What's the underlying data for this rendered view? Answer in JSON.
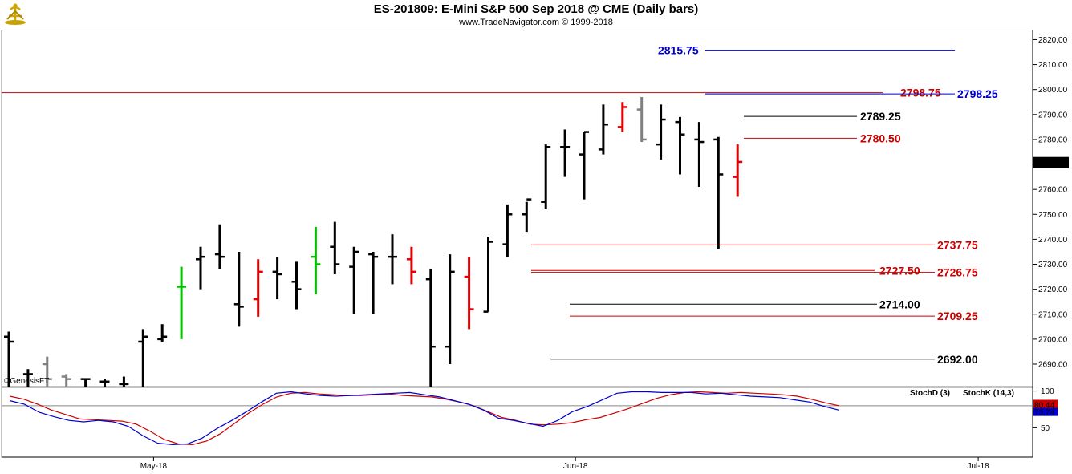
{
  "header": {
    "title": "ES-201809:  E-Mini S&P 500 Sep 2018 @ CME  (Daily bars)",
    "subtitle": "www.TradeNavigator.com © 1999-2018"
  },
  "chart_data": {
    "type": "ohlc",
    "price_axis": {
      "ylim": [
        2681,
        2824
      ],
      "ticks": [
        2690,
        2700,
        2710,
        2720,
        2730,
        2740,
        2750,
        2760,
        2770,
        2780,
        2790,
        2800,
        2810,
        2820
      ],
      "tick_labels": [
        "2690.00",
        "2700.00",
        "2710.00",
        "2720.00",
        "2730.00",
        "2740.00",
        "2750.00",
        "2760.00",
        "2770.00",
        "2780.00",
        "2790.00",
        "2800.00",
        "2810.00",
        "2820.00"
      ]
    },
    "x_axis": {
      "labels": [
        "May-18",
        "Jun-18",
        "Jul-18"
      ],
      "label_index": [
        6,
        28,
        49
      ]
    },
    "current_price_label": "2770.75",
    "current_price": 2770.75,
    "watermark": "©GenesisFT",
    "bars": [
      {
        "o": 2701,
        "h": 2703,
        "l": 2681,
        "c": 2699,
        "color": "#000000"
      },
      {
        "o": 2686,
        "h": 2688,
        "l": 2681,
        "c": 2686,
        "color": "#000000"
      },
      {
        "o": 2690,
        "h": 2693,
        "l": 2681,
        "c": 2684,
        "color": "#808080"
      },
      {
        "o": 2685,
        "h": 2686,
        "l": 2681,
        "c": 2684,
        "color": "#808080"
      },
      {
        "o": 2684,
        "h": 2684,
        "l": 2681,
        "c": 2684,
        "color": "#000000"
      },
      {
        "o": 2683,
        "h": 2684,
        "l": 2681,
        "c": 2683,
        "color": "#000000"
      },
      {
        "o": 2682,
        "h": 2685,
        "l": 2681,
        "c": 2682,
        "color": "#000000"
      },
      {
        "o": 2699,
        "h": 2704,
        "l": 2681,
        "c": 2701,
        "color": "#000000"
      },
      {
        "o": 2700,
        "h": 2706,
        "l": 2699,
        "c": 2701,
        "color": "#000000"
      },
      {
        "o": 2721,
        "h": 2729,
        "l": 2700,
        "c": 2721,
        "color": "#00c000"
      },
      {
        "o": 2732,
        "h": 2737,
        "l": 2720,
        "c": 2733,
        "color": "#000000"
      },
      {
        "o": 2734,
        "h": 2746,
        "l": 2728,
        "c": 2733,
        "color": "#000000"
      },
      {
        "o": 2714,
        "h": 2735,
        "l": 2705,
        "c": 2713,
        "color": "#000000"
      },
      {
        "o": 2716,
        "h": 2732,
        "l": 2709,
        "c": 2727,
        "color": "#e00000"
      },
      {
        "o": 2727,
        "h": 2733,
        "l": 2716,
        "c": 2726,
        "color": "#000000"
      },
      {
        "o": 2723,
        "h": 2731,
        "l": 2712,
        "c": 2720,
        "color": "#000000"
      },
      {
        "o": 2733,
        "h": 2745,
        "l": 2718,
        "c": 2730,
        "color": "#00c000"
      },
      {
        "o": 2737,
        "h": 2747,
        "l": 2726,
        "c": 2730,
        "color": "#000000"
      },
      {
        "o": 2729,
        "h": 2737,
        "l": 2710,
        "c": 2735,
        "color": "#000000"
      },
      {
        "o": 2734,
        "h": 2735,
        "l": 2710,
        "c": 2733,
        "color": "#000000"
      },
      {
        "o": 2733,
        "h": 2742,
        "l": 2722,
        "c": 2733,
        "color": "#000000"
      },
      {
        "o": 2732,
        "h": 2737,
        "l": 2722,
        "c": 2727,
        "color": "#e00000"
      },
      {
        "o": 2724,
        "h": 2728,
        "l": 2681,
        "c": 2697,
        "color": "#000000"
      },
      {
        "o": 2697,
        "h": 2734,
        "l": 2690,
        "c": 2727,
        "color": "#000000"
      },
      {
        "o": 2725,
        "h": 2733,
        "l": 2704,
        "c": 2712,
        "color": "#e00000"
      },
      {
        "o": 2711,
        "h": 2741,
        "l": 2711,
        "c": 2739,
        "color": "#000000"
      },
      {
        "o": 2738,
        "h": 2754,
        "l": 2733,
        "c": 2750,
        "color": "#000000"
      },
      {
        "o": 2750,
        "h": 2755,
        "l": 2743,
        "c": 2756,
        "color": "#000000"
      },
      {
        "o": 2755,
        "h": 2778,
        "l": 2752,
        "c": 2777,
        "color": "#000000"
      },
      {
        "o": 2777,
        "h": 2784,
        "l": 2765,
        "c": 2777,
        "color": "#000000"
      },
      {
        "o": 2774,
        "h": 2783,
        "l": 2756,
        "c": 2783,
        "color": "#000000"
      },
      {
        "o": 2776,
        "h": 2794,
        "l": 2774,
        "c": 2786,
        "color": "#000000"
      },
      {
        "o": 2785,
        "h": 2795,
        "l": 2783,
        "c": 2793,
        "color": "#e00000"
      },
      {
        "o": 2792,
        "h": 2797,
        "l": 2779,
        "c": 2780,
        "color": "#808080"
      },
      {
        "o": 2778,
        "h": 2794,
        "l": 2772,
        "c": 2788,
        "color": "#000000"
      },
      {
        "o": 2787,
        "h": 2789,
        "l": 2766,
        "c": 2782,
        "color": "#000000"
      },
      {
        "o": 2780,
        "h": 2787,
        "l": 2761,
        "c": 2779,
        "color": "#000000"
      },
      {
        "o": 2780,
        "h": 2781,
        "l": 2736,
        "c": 2766,
        "color": "#000000"
      },
      {
        "o": 2765,
        "h": 2778,
        "l": 2757,
        "c": 2771,
        "color": "#e00000"
      }
    ],
    "levels": [
      {
        "value": 2815.75,
        "label": "2815.75",
        "color": "#0000cc",
        "label_pos": "left"
      },
      {
        "value": 2798.75,
        "label": "2798.75",
        "color": "#cc0000",
        "label_pos": "right"
      },
      {
        "value": 2798.25,
        "label": "2798.25",
        "color": "#0000cc",
        "label_pos": "far-right"
      },
      {
        "value": 2789.25,
        "label": "2789.25",
        "color": "#000000",
        "label_pos": "right"
      },
      {
        "value": 2780.5,
        "label": "2780.50",
        "color": "#cc0000",
        "label_pos": "right"
      },
      {
        "value": 2737.75,
        "label": "2737.75",
        "color": "#cc0000",
        "label_pos": "right"
      },
      {
        "value": 2727.5,
        "label": "2727.50",
        "color": "#cc0000",
        "label_pos": "right"
      },
      {
        "value": 2726.75,
        "label": "2726.75",
        "color": "#cc0000",
        "label_pos": "right"
      },
      {
        "value": 2714.0,
        "label": "2714.00",
        "color": "#000000",
        "label_pos": "right"
      },
      {
        "value": 2709.25,
        "label": "2709.25",
        "color": "#cc0000",
        "label_pos": "right"
      },
      {
        "value": 2692.0,
        "label": "2692.00",
        "color": "#000000",
        "label_pos": "right"
      }
    ],
    "stochastic": {
      "ylim": [
        10,
        105
      ],
      "ticks": [
        50,
        100
      ],
      "tick_labels": [
        "50",
        "100"
      ],
      "reference_level": 80,
      "labels": {
        "d": "StochD (3)",
        "k": "StochK (14,3)"
      },
      "d_value_label": "80.44",
      "k_value_label": "73.74",
      "d_color": "#cc0000",
      "k_color": "#0000cc",
      "d": [
        93,
        89,
        82,
        74,
        68,
        62,
        61,
        60,
        59,
        55,
        45,
        34,
        28,
        27,
        32,
        42,
        56,
        70,
        82,
        92,
        97,
        98,
        96,
        95,
        94,
        94,
        95,
        96,
        94,
        93,
        92,
        89,
        85,
        80,
        72,
        64,
        60,
        55,
        54,
        55,
        57,
        61,
        64,
        70,
        76,
        83,
        90,
        95,
        98,
        99,
        98,
        97,
        98,
        97,
        96,
        95,
        93,
        89,
        84,
        80
      ],
      "k": [
        87,
        82,
        71,
        65,
        60,
        58,
        60,
        58,
        52,
        39,
        29,
        27,
        28,
        36,
        49,
        60,
        72,
        85,
        97,
        99,
        96,
        94,
        93,
        94,
        95,
        96,
        97,
        98,
        95,
        92,
        87,
        82,
        74,
        63,
        60,
        56,
        52,
        60,
        72,
        79,
        88,
        97,
        99,
        99,
        98,
        98,
        98,
        96,
        97,
        95,
        93,
        92,
        91,
        88,
        85,
        79,
        74
      ]
    }
  }
}
